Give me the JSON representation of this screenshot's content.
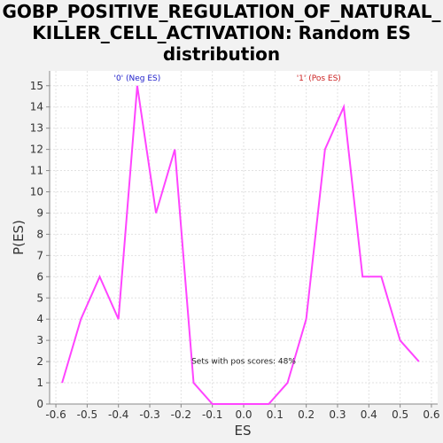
{
  "chart_data": {
    "type": "line",
    "title": "GOBP_POSITIVE_REGULATION_OF_NATURAL_\nKILLER_CELL_ACTIVATION: Random ES\ndistribution",
    "xlabel": "ES",
    "ylabel": "P(ES)",
    "xlim": [
      -0.62,
      0.62
    ],
    "ylim": [
      0,
      15.7
    ],
    "xticks": [
      "-0.6",
      "-0.5",
      "-0.4",
      "-0.3",
      "-0.2",
      "-0.1",
      "0.0",
      "0.1",
      "0.2",
      "0.3",
      "0.4",
      "0.5",
      "0.6"
    ],
    "xtick_values": [
      -0.6,
      -0.5,
      -0.4,
      -0.3,
      -0.2,
      -0.1,
      0.0,
      0.1,
      0.2,
      0.3,
      0.4,
      0.5,
      0.6
    ],
    "yticks": [
      0,
      1,
      2,
      3,
      4,
      5,
      6,
      7,
      8,
      9,
      10,
      11,
      12,
      13,
      14,
      15
    ],
    "grid": true,
    "series": [
      {
        "color": "#ff44ff",
        "x": [
          -0.58,
          -0.52,
          -0.46,
          -0.4,
          -0.34,
          -0.28,
          -0.22,
          -0.16,
          -0.1,
          -0.04,
          0.02,
          0.08,
          0.14,
          0.2,
          0.26,
          0.32,
          0.38,
          0.44,
          0.5,
          0.56
        ],
        "y": [
          1,
          4,
          6,
          4,
          15,
          9,
          12,
          1,
          0,
          0,
          0,
          0,
          1,
          4,
          12,
          14,
          6,
          6,
          3,
          2
        ]
      }
    ],
    "annotations": [
      {
        "text": "'0' (Neg ES)",
        "x": -0.34,
        "y": 15.25,
        "color": "#2222cc"
      },
      {
        "text": "'1' (Pos ES)",
        "x": 0.24,
        "y": 15.25,
        "color": "#cc2222"
      },
      {
        "text": "Sets with pos scores: 48%",
        "x": 0.0,
        "y": 1.9,
        "color": "#222222"
      }
    ]
  }
}
